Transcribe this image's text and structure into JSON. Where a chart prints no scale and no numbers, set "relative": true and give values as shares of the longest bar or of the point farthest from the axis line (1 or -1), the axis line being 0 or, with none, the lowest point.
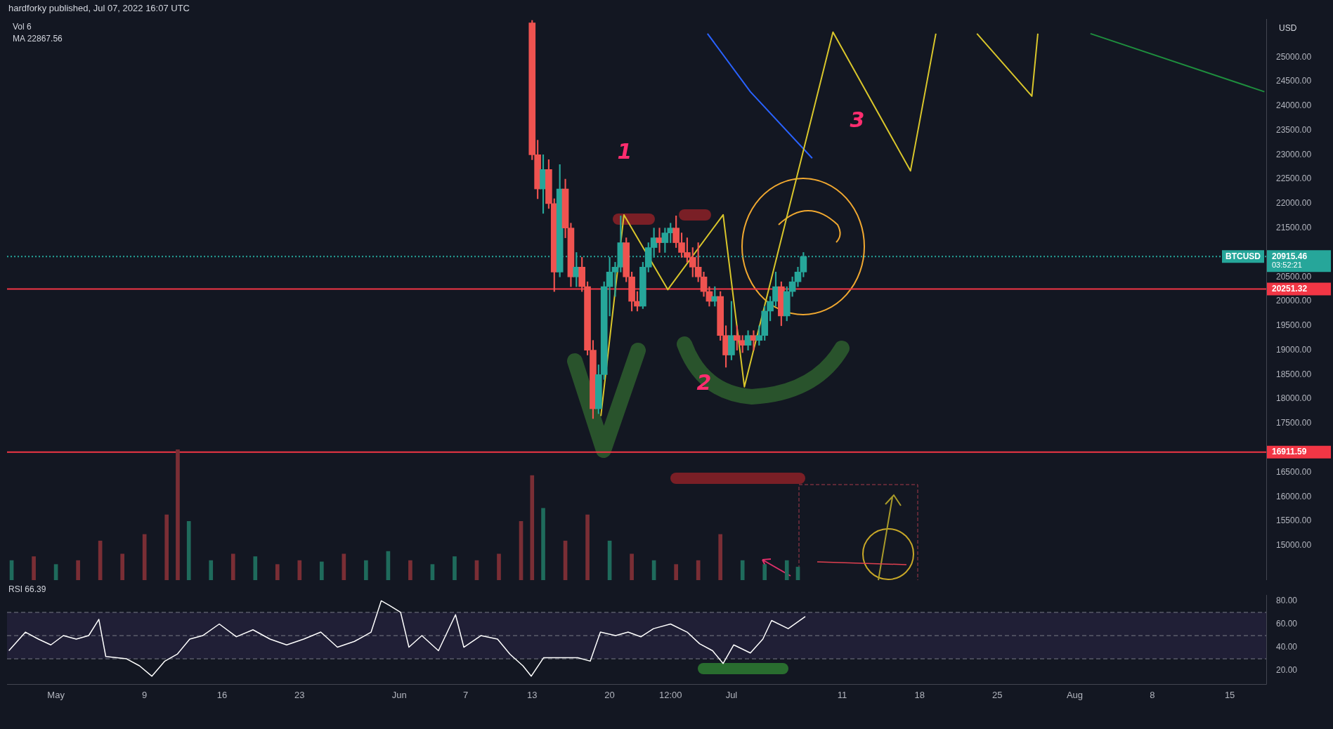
{
  "chart_data": [
    {
      "type": "candlestick",
      "title": "hardforky published, Jul 07, 2022 16:07 UTC",
      "ylabel": "USD",
      "tick_labels": "y",
      "x": [
        "2022-06-13T00:00",
        "2022-06-13T12:00",
        "2022-06-14T00:00",
        "2022-06-14T12:00",
        "2022-06-15T00:00",
        "2022-06-15T12:00",
        "2022-06-16T00:00",
        "2022-06-16T12:00",
        "2022-06-17T00:00",
        "2022-06-17T12:00",
        "2022-06-18T00:00",
        "2022-06-18T12:00",
        "2022-06-19T00:00",
        "2022-06-19T12:00",
        "2022-06-20T00:00",
        "2022-06-20T12:00",
        "2022-06-21T00:00",
        "2022-06-21T12:00",
        "2022-06-22T00:00",
        "2022-06-22T12:00",
        "2022-06-23T00:00",
        "2022-06-23T12:00",
        "2022-06-24T00:00",
        "2022-06-24T12:00",
        "2022-06-25T00:00",
        "2022-06-25T12:00",
        "2022-06-26T00:00",
        "2022-06-26T12:00",
        "2022-06-27T00:00",
        "2022-06-27T12:00",
        "2022-06-28T00:00",
        "2022-06-28T12:00",
        "2022-06-29T00:00",
        "2022-06-29T12:00",
        "2022-06-30T00:00",
        "2022-06-30T12:00",
        "2022-07-01T00:00",
        "2022-07-01T12:00",
        "2022-07-02T00:00",
        "2022-07-02T12:00",
        "2022-07-03T00:00",
        "2022-07-03T12:00",
        "2022-07-04T00:00",
        "2022-07-04T12:00",
        "2022-07-05T00:00",
        "2022-07-05T12:00",
        "2022-07-06T00:00",
        "2022-07-06T12:00",
        "2022-07-07T00:00",
        "2022-07-07T12:00"
      ],
      "ohlc": [
        [
          25700,
          25750,
          22900,
          23000
        ],
        [
          23000,
          23300,
          22100,
          22300
        ],
        [
          22300,
          23000,
          21800,
          22700
        ],
        [
          22700,
          22900,
          21900,
          22000
        ],
        [
          22000,
          22100,
          20200,
          20600
        ],
        [
          20600,
          22800,
          20500,
          22300
        ],
        [
          22300,
          22500,
          21300,
          21500
        ],
        [
          21500,
          21600,
          20300,
          20500
        ],
        [
          20500,
          21000,
          20300,
          20700
        ],
        [
          20700,
          20900,
          20200,
          20300
        ],
        [
          20300,
          20400,
          18900,
          19000
        ],
        [
          19000,
          19200,
          17600,
          17800
        ],
        [
          17800,
          18700,
          17700,
          18500
        ],
        [
          18500,
          20400,
          18400,
          20300
        ],
        [
          20300,
          20900,
          19700,
          20600
        ],
        [
          20600,
          20800,
          20100,
          20700
        ],
        [
          20700,
          21750,
          20600,
          21200
        ],
        [
          21200,
          21300,
          20400,
          20500
        ],
        [
          20500,
          20600,
          19800,
          20000
        ],
        [
          20000,
          20200,
          19800,
          19900
        ],
        [
          19900,
          20800,
          19850,
          20700
        ],
        [
          20700,
          21200,
          20600,
          21100
        ],
        [
          21100,
          21500,
          20900,
          21300
        ],
        [
          21300,
          21500,
          21000,
          21200
        ],
        [
          21200,
          21500,
          21000,
          21400
        ],
        [
          21400,
          21600,
          21200,
          21500
        ],
        [
          21500,
          21750,
          21100,
          21200
        ],
        [
          21200,
          21400,
          20900,
          21000
        ],
        [
          21000,
          21300,
          20800,
          20900
        ],
        [
          20900,
          21100,
          20500,
          20700
        ],
        [
          20700,
          21200,
          20400,
          20500
        ],
        [
          20500,
          20600,
          20100,
          20200
        ],
        [
          20200,
          20300,
          19900,
          20000
        ],
        [
          20000,
          20300,
          19900,
          20100
        ],
        [
          20100,
          20200,
          19200,
          19300
        ],
        [
          19300,
          19500,
          18650,
          18900
        ],
        [
          18900,
          20000,
          18800,
          19300
        ],
        [
          19300,
          19500,
          19000,
          19200
        ],
        [
          19200,
          19300,
          18950,
          19100
        ],
        [
          19100,
          19400,
          19000,
          19300
        ],
        [
          19300,
          19400,
          19000,
          19200
        ],
        [
          19200,
          19500,
          19100,
          19300
        ],
        [
          19300,
          19900,
          19200,
          19800
        ],
        [
          19800,
          20100,
          19600,
          20000
        ],
        [
          20000,
          20600,
          19900,
          20300
        ],
        [
          20300,
          20400,
          19500,
          19700
        ],
        [
          19700,
          20300,
          19600,
          20200
        ],
        [
          20200,
          20500,
          20100,
          20400
        ],
        [
          20400,
          20700,
          20300,
          20600
        ],
        [
          20600,
          21000,
          20500,
          20915.46
        ]
      ],
      "series": [
        {
          "type": "line",
          "color": "#d9c62b",
          "x": [
            "2022-06-19T05:00",
            "2022-06-21T07:00",
            "2022-06-25T06:00",
            "2022-06-30T06:00",
            "2022-07-02T04:00",
            "2022-07-10T04:00",
            "2022-07-17T04:00",
            "2022-07-19T11:00",
            "2022-07-21T12:00",
            "2022-07-23T04:00",
            "2022-07-28T03:00",
            "2022-07-28T16:00"
          ],
          "values": [
            17650,
            21770,
            20240,
            21770,
            18250,
            25510,
            22670,
            25480,
            null,
            25480,
            24200,
            25480
          ]
        },
        {
          "type": "line",
          "color": "#2962ff",
          "x": [
            "2022-06-28T20:00",
            "2022-07-02T17:00",
            "2022-07-08T07:00"
          ],
          "values": [
            25480,
            24290,
            22930
          ]
        },
        {
          "type": "line",
          "color": "#1e8e3e",
          "x": [
            "2022-08-02T10:00",
            "2022-08-18T03:00"
          ],
          "values": [
            25480,
            24290
          ]
        }
      ],
      "xlim": [
        "2022-04-26T14:00",
        "2022-08-18T07:00"
      ],
      "ylim": [
        14540,
        25780
      ],
      "yticks": [
        {
          "value": 15000,
          "label": "15000.00"
        },
        {
          "value": 15500,
          "label": "15500.00"
        },
        {
          "value": 16000,
          "label": "16000.00"
        },
        {
          "value": 16500,
          "label": "16500.00"
        },
        {
          "value": 17500,
          "label": "17500.00"
        },
        {
          "value": 18000,
          "label": "18000.00"
        },
        {
          "value": 18500,
          "label": "18500.00"
        },
        {
          "value": 19000,
          "label": "19000.00"
        },
        {
          "value": 19500,
          "label": "19500.00"
        },
        {
          "value": 20000,
          "label": "20000.00"
        },
        {
          "value": 20500,
          "label": "20500.00"
        },
        {
          "value": 21500,
          "label": "21500.00"
        },
        {
          "value": 22000,
          "label": "22000.00"
        },
        {
          "value": 22500,
          "label": "22500.00"
        },
        {
          "value": 23000,
          "label": "23000.00"
        },
        {
          "value": 23500,
          "label": "23500.00"
        },
        {
          "value": 24000,
          "label": "24000.00"
        },
        {
          "value": 24500,
          "label": "24500.00"
        },
        {
          "value": 25000,
          "label": "25000.00"
        }
      ],
      "ref_lines": [
        {
          "axis": "y",
          "value": 20915.46,
          "label": "20915.46",
          "color": "#26a69a",
          "line_style": "dotted"
        },
        {
          "axis": "y",
          "value": 20251.32,
          "label": "20251.32",
          "color": "#f23645"
        },
        {
          "axis": "y",
          "value": 16911.59,
          "label": "16911.59",
          "color": "#f23645"
        }
      ],
      "annotations": [
        "BTCUSD",
        "03:52:21",
        "1",
        "2",
        "3"
      ]
    },
    {
      "type": "bar",
      "relative": true,
      "tick_labels": false,
      "annotations": [
        "Vol 6",
        "MA 22867.56"
      ],
      "xlim": [
        "2022-04-26T14:00",
        "2022-08-18T07:00"
      ],
      "xticks": [
        "2022-05-01",
        "2022-05-09",
        "2022-05-16",
        "2022-05-23",
        "2022-06-01",
        "2022-06-07",
        "2022-06-13",
        "2022-06-20",
        "2022-06-25T12:00",
        "2022-07-01",
        "2022-07-11",
        "2022-07-18",
        "2022-07-25",
        "2022-08-01",
        "2022-08-08",
        "2022-08-15"
      ],
      "x": [
        "2022-04-27",
        "2022-04-29",
        "2022-05-01",
        "2022-05-03",
        "2022-05-05",
        "2022-05-07",
        "2022-05-09",
        "2022-05-11",
        "2022-05-12",
        "2022-05-13",
        "2022-05-15",
        "2022-05-17",
        "2022-05-19",
        "2022-05-21",
        "2022-05-23",
        "2022-05-25",
        "2022-05-27",
        "2022-05-29",
        "2022-05-31",
        "2022-06-02",
        "2022-06-04",
        "2022-06-06",
        "2022-06-08",
        "2022-06-10",
        "2022-06-12",
        "2022-06-13",
        "2022-06-14",
        "2022-06-16",
        "2022-06-18",
        "2022-06-20",
        "2022-06-22",
        "2022-06-24",
        "2022-06-26",
        "2022-06-28",
        "2022-06-30",
        "2022-07-02",
        "2022-07-04",
        "2022-07-06",
        "2022-07-07"
      ],
      "values": [
        0.15,
        0.18,
        0.12,
        0.15,
        0.3,
        0.2,
        0.35,
        0.5,
        1,
        0.45,
        0.15,
        0.2,
        0.18,
        0.12,
        0.15,
        0.14,
        0.2,
        0.15,
        0.22,
        0.15,
        0.12,
        0.18,
        0.15,
        0.2,
        0.45,
        0.8,
        0.55,
        0.3,
        0.5,
        0.3,
        0.2,
        0.15,
        0.12,
        0.15,
        0.35,
        0.15,
        0.12,
        0.15,
        0.1
      ],
      "colors": [
        "#1f6b5c",
        "#7a2e35",
        "#1f6b5c",
        "#7a2e35",
        "#7a2e35",
        "#7a2e35",
        "#7a2e35",
        "#7a2e35",
        "#7a2e35",
        "#1f6b5c",
        "#1f6b5c",
        "#7a2e35",
        "#1f6b5c",
        "#7a2e35",
        "#7a2e35",
        "#1f6b5c",
        "#7a2e35",
        "#1f6b5c",
        "#1f6b5c",
        "#7a2e35",
        "#1f6b5c",
        "#1f6b5c",
        "#7a2e35",
        "#7a2e35",
        "#7a2e35",
        "#7a2e35",
        "#1f6b5c",
        "#7a2e35",
        "#7a2e35",
        "#1f6b5c",
        "#7a2e35",
        "#1f6b5c",
        "#7a2e35",
        "#7a2e35",
        "#7a2e35",
        "#1f6b5c",
        "#1f6b5c",
        "#1f6b5c",
        "#1f6b5c"
      ]
    },
    {
      "type": "line",
      "title": "RSI 66.39",
      "color": "#ffffff",
      "x": [
        "2022-04-26T18:00",
        "2022-04-28T06:00",
        "2022-04-29T10:00",
        "2022-04-30T13:00",
        "2022-05-01T16:00",
        "2022-05-02T20:00",
        "2022-05-03T23:00",
        "2022-05-04T21:00",
        "2022-05-05T12:00",
        "2022-05-07T09:00",
        "2022-05-08T13:00",
        "2022-05-09T16:00",
        "2022-05-10T20:00",
        "2022-05-11T23:00",
        "2022-05-13T02:00",
        "2022-05-14T06:00",
        "2022-05-15T18:00",
        "2022-05-17T07:00",
        "2022-05-18T19:00",
        "2022-05-20T08:00",
        "2022-05-21T20:00",
        "2022-05-23T09:00",
        "2022-05-24T22:00",
        "2022-05-26T10:00",
        "2022-05-27T23:00",
        "2022-05-29T11:00",
        "2022-05-30T09:00",
        "2022-05-31T03:00",
        "2022-06-01T03:00",
        "2022-06-01T21:00",
        "2022-06-03T01:00",
        "2022-06-04T13:00",
        "2022-06-06T02:00",
        "2022-06-06T20:00",
        "2022-06-08T09:00",
        "2022-06-09T21:00",
        "2022-06-11T00:00",
        "2022-06-12T04:00",
        "2022-06-12T22:00",
        "2022-06-14T01:00",
        "2022-06-15T14:00",
        "2022-06-17T03:00",
        "2022-06-18T06:00",
        "2022-06-19T04:00",
        "2022-06-20T13:00",
        "2022-06-21T16:00",
        "2022-06-22T20:00",
        "2022-06-23T23:00",
        "2022-06-25T12:00",
        "2022-06-27T00:00",
        "2022-06-28T03:00",
        "2022-06-29T07:00",
        "2022-06-30T06:00",
        "2022-07-01T05:00",
        "2022-07-02T17:00",
        "2022-07-03T20:00",
        "2022-07-04T15:00",
        "2022-07-06T03:00",
        "2022-07-07T16:00"
      ],
      "values": [
        37,
        53,
        47,
        42,
        50,
        47,
        50,
        64,
        32,
        30,
        24,
        15,
        28,
        34,
        47,
        50,
        60,
        49,
        55,
        47,
        42,
        47,
        53,
        40,
        45,
        53,
        80,
        76,
        70,
        40,
        50,
        37,
        68,
        40,
        50,
        47,
        34,
        24,
        15,
        31,
        31,
        31,
        28,
        53,
        50,
        53,
        49,
        56,
        60,
        53,
        43,
        37,
        26,
        42,
        35,
        47,
        63,
        56,
        66.39
      ],
      "xlim": [
        "2022-04-26T14:00",
        "2022-08-18T07:00"
      ],
      "ylim": [
        8,
        85
      ],
      "yticks": [
        {
          "value": 20,
          "label": "20.00"
        },
        {
          "value": 40,
          "label": "40.00"
        },
        {
          "value": 60,
          "label": "60.00"
        },
        {
          "value": 80,
          "label": "80.00"
        }
      ],
      "xticks": [
        {
          "value": "2022-05-01",
          "label": "May"
        },
        {
          "value": "2022-05-09",
          "label": "9"
        },
        {
          "value": "2022-05-16",
          "label": "16"
        },
        {
          "value": "2022-05-23",
          "label": "23"
        },
        {
          "value": "2022-06-01",
          "label": "Jun"
        },
        {
          "value": "2022-06-07",
          "label": "7"
        },
        {
          "value": "2022-06-13",
          "label": "13"
        },
        {
          "value": "2022-06-20",
          "label": "20"
        },
        {
          "value": "2022-06-25T12:00",
          "label": "12:00"
        },
        {
          "value": "2022-07-01",
          "label": "Jul"
        },
        {
          "value": "2022-07-11",
          "label": "11"
        },
        {
          "value": "2022-07-18",
          "label": "18"
        },
        {
          "value": "2022-07-25",
          "label": "25"
        },
        {
          "value": "2022-08-01",
          "label": "Aug"
        },
        {
          "value": "2022-08-08",
          "label": "8"
        },
        {
          "value": "2022-08-15",
          "label": "15"
        }
      ],
      "ref_lines": [
        {
          "axis": "y",
          "value": 30,
          "color": "#787b86",
          "line_style": "dashed"
        },
        {
          "axis": "y",
          "value": 50,
          "color": "#787b86",
          "line_style": "dashed"
        },
        {
          "axis": "y",
          "value": 70,
          "color": "#787b86",
          "line_style": "dashed"
        }
      ],
      "bands": [
        {
          "axis": "y",
          "from": 30,
          "to": 70,
          "color": "#7e57c2"
        }
      ]
    }
  ]
}
